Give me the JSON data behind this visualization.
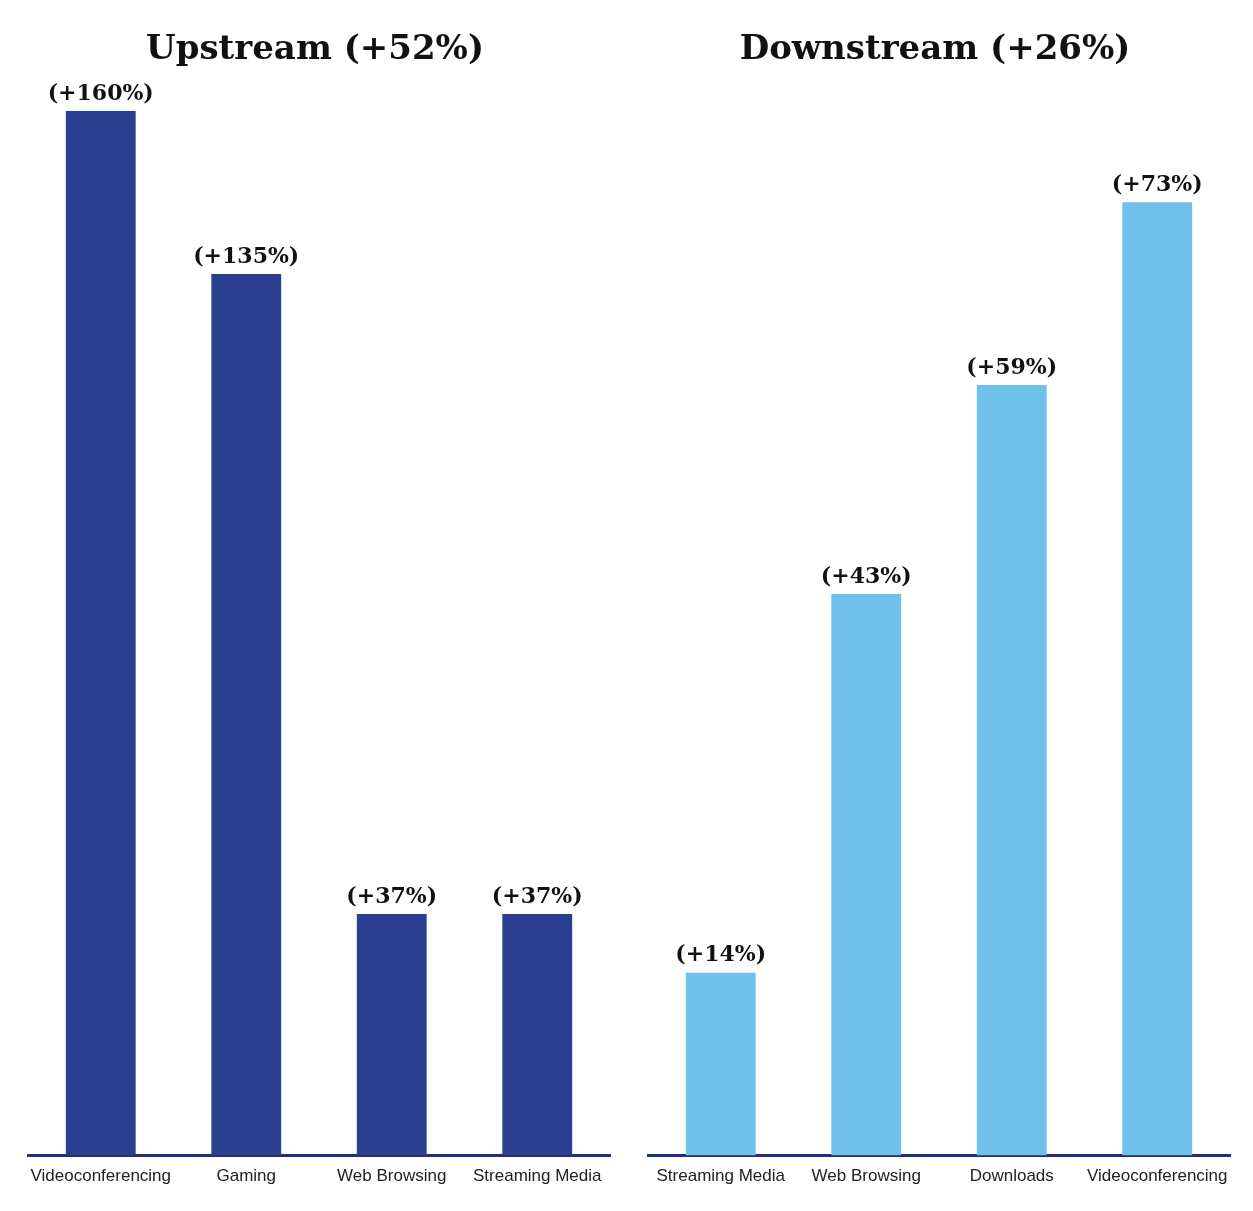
{
  "chart_data": [
    {
      "type": "bar",
      "title": "Upstream (+52%)",
      "categories": [
        "Videoconferencing",
        "Gaming",
        "Web Browsing",
        "Streaming Media"
      ],
      "values": [
        160,
        135,
        37,
        37
      ],
      "value_labels": [
        "(+160%)",
        "(+135%)",
        "(+37%)",
        "(+37%)"
      ],
      "color": "#2b3f91",
      "tick_labels": "x",
      "grid": false
    },
    {
      "type": "bar",
      "title": "Downstream (+26%)",
      "categories": [
        "Streaming Media",
        "Web Browsing",
        "Downloads",
        "Videoconferencing"
      ],
      "values": [
        14,
        43,
        59,
        73
      ],
      "value_labels": [
        "(+14%)",
        "(+43%)",
        "(+59%)",
        "(+73%)"
      ],
      "color": "#6fc0ea",
      "tick_labels": "x",
      "grid": false
    }
  ]
}
